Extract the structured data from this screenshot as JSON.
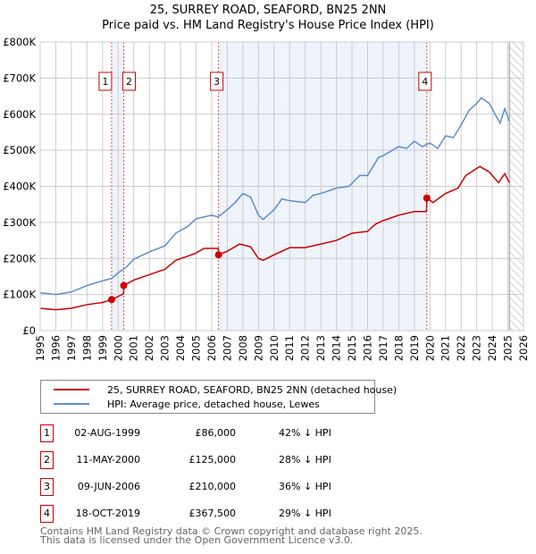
{
  "title": "25, SURREY ROAD, SEAFORD, BN25 2NN",
  "subtitle": "Price paid vs. HM Land Registry's House Price Index (HPI)",
  "chart_data": {
    "type": "line",
    "xlim": [
      1995,
      2026
    ],
    "ylim": [
      0,
      800000
    ],
    "x_ticks": [
      "1995",
      "1996",
      "1997",
      "1998",
      "1999",
      "2000",
      "2001",
      "2002",
      "2003",
      "2004",
      "2005",
      "2006",
      "2007",
      "2008",
      "2009",
      "2010",
      "2011",
      "2012",
      "2013",
      "2014",
      "2015",
      "2016",
      "2017",
      "2018",
      "2019",
      "2020",
      "2021",
      "2022",
      "2023",
      "2024",
      "2025",
      "2026"
    ],
    "y_ticks": [
      {
        "v": 0,
        "label": "£0"
      },
      {
        "v": 100000,
        "label": "£100K"
      },
      {
        "v": 200000,
        "label": "£200K"
      },
      {
        "v": 300000,
        "label": "£300K"
      },
      {
        "v": 400000,
        "label": "£400K"
      },
      {
        "v": 500000,
        "label": "£500K"
      },
      {
        "v": 600000,
        "label": "£600K"
      },
      {
        "v": 700000,
        "label": "£700K"
      },
      {
        "v": 800000,
        "label": "£800K"
      }
    ],
    "colors": {
      "property": "#cc0000",
      "hpi": "#5b8fd0",
      "shade": "#eef3fc"
    },
    "future_hatch_from": 2025.1,
    "series": [
      {
        "name": "25, SURREY ROAD, SEAFORD, BN25 2NN (detached house)",
        "x": [
          1995,
          1996,
          1997,
          1998,
          1999,
          1999.58,
          2000.35,
          2000.36,
          2001,
          2002,
          2003,
          2003.7,
          2004.5,
          2005,
          2005.5,
          2006.43,
          2006.44,
          2007,
          2007.8,
          2008.5,
          2009,
          2009.3,
          2010,
          2011,
          2012,
          2013,
          2014,
          2015,
          2016,
          2016.5,
          2017,
          2018,
          2019,
          2019.78,
          2019.8,
          2020.2,
          2021,
          2021.8,
          2022.3,
          2023.2,
          2023.8,
          2024.4,
          2024.8,
          2025.1
        ],
        "values": [
          62000,
          58000,
          62000,
          72000,
          78000,
          86000,
          102000,
          125000,
          140000,
          155000,
          170000,
          195000,
          207000,
          215000,
          228000,
          228000,
          210000,
          220000,
          240000,
          232000,
          200000,
          195000,
          210000,
          230000,
          230000,
          240000,
          250000,
          270000,
          275000,
          295000,
          305000,
          320000,
          330000,
          330000,
          367500,
          355000,
          380000,
          395000,
          430000,
          455000,
          440000,
          410000,
          435000,
          410000
        ]
      },
      {
        "name": "HPI: Average price, detached house, Lewes",
        "x": [
          1995,
          1996,
          1997,
          1998,
          1999,
          1999.6,
          2000,
          2000.5,
          2001,
          2002,
          2003,
          2003.7,
          2004.5,
          2005,
          2006,
          2006.4,
          2007,
          2007.5,
          2008,
          2008.5,
          2009,
          2009.3,
          2010,
          2010.5,
          2011,
          2012,
          2012.5,
          2013,
          2014,
          2014.8,
          2015.5,
          2016,
          2016.7,
          2017,
          2018,
          2018.5,
          2019,
          2019.5,
          2020,
          2020.5,
          2021,
          2021.5,
          2022,
          2022.5,
          2023,
          2023.3,
          2023.8,
          2024.3,
          2024.5,
          2024.8,
          2025.1
        ],
        "values": [
          105000,
          100000,
          107000,
          125000,
          138000,
          145000,
          160000,
          175000,
          198000,
          218000,
          235000,
          270000,
          290000,
          310000,
          320000,
          315000,
          335000,
          355000,
          380000,
          370000,
          320000,
          308000,
          335000,
          365000,
          360000,
          355000,
          375000,
          380000,
          395000,
          400000,
          430000,
          430000,
          480000,
          485000,
          510000,
          505000,
          525000,
          510000,
          520000,
          505000,
          540000,
          535000,
          570000,
          610000,
          630000,
          645000,
          630000,
          590000,
          575000,
          615000,
          580000
        ]
      }
    ],
    "sales": [
      {
        "n": "1",
        "x": 1999.58,
        "value": 86000,
        "date": "02-AUG-1999",
        "price": "£86,000",
        "hpi": "42% ↓ HPI"
      },
      {
        "n": "2",
        "x": 2000.36,
        "value": 125000,
        "date": "11-MAY-2000",
        "price": "£125,000",
        "hpi": "28% ↓ HPI"
      },
      {
        "n": "3",
        "x": 2006.44,
        "value": 210000,
        "date": "09-JUN-2006",
        "price": "£210,000",
        "hpi": "36% ↓ HPI"
      },
      {
        "n": "4",
        "x": 2019.8,
        "value": 367500,
        "date": "18-OCT-2019",
        "price": "£367,500",
        "hpi": "29% ↓ HPI"
      }
    ]
  },
  "legend": {
    "property": "25, SURREY ROAD, SEAFORD, BN25 2NN (detached house)",
    "hpi": "HPI: Average price, detached house, Lewes"
  },
  "footer": {
    "line1": "Contains HM Land Registry data © Crown copyright and database right 2025.",
    "line2": "This data is licensed under the Open Government Licence v3.0."
  }
}
